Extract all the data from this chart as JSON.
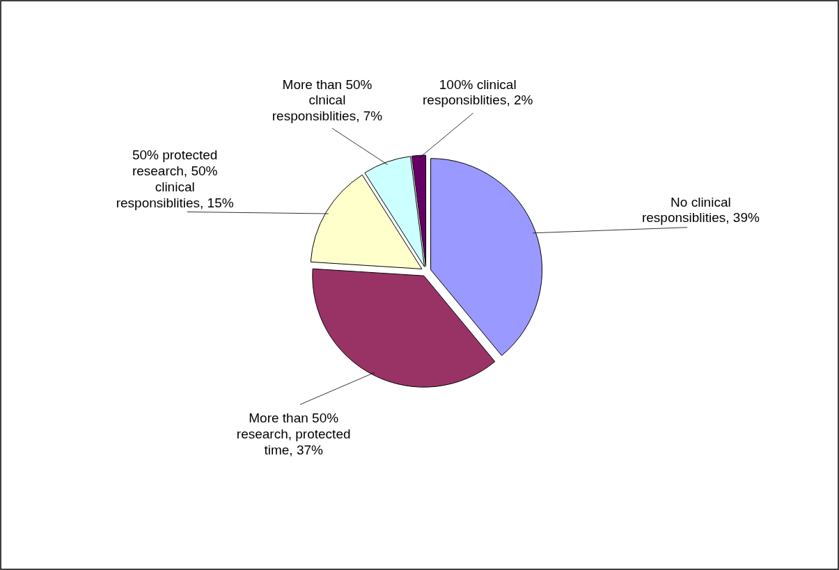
{
  "chart_data": {
    "type": "pie",
    "categories": [
      "No clinical responsiblities",
      "More than 50% research, protected time",
      "50% protected research,  50% clinical responsiblities",
      "More than 50% clnical responsiblities",
      "100% clinical responsiblities"
    ],
    "values": [
      39,
      37,
      15,
      7,
      2
    ],
    "value_labels": [
      "39%",
      "37%",
      "15%",
      "7%",
      "2%"
    ],
    "colors": [
      "#9999ff",
      "#993366",
      "#ffffcc",
      "#ccffff",
      "#660066"
    ],
    "legend": false
  }
}
